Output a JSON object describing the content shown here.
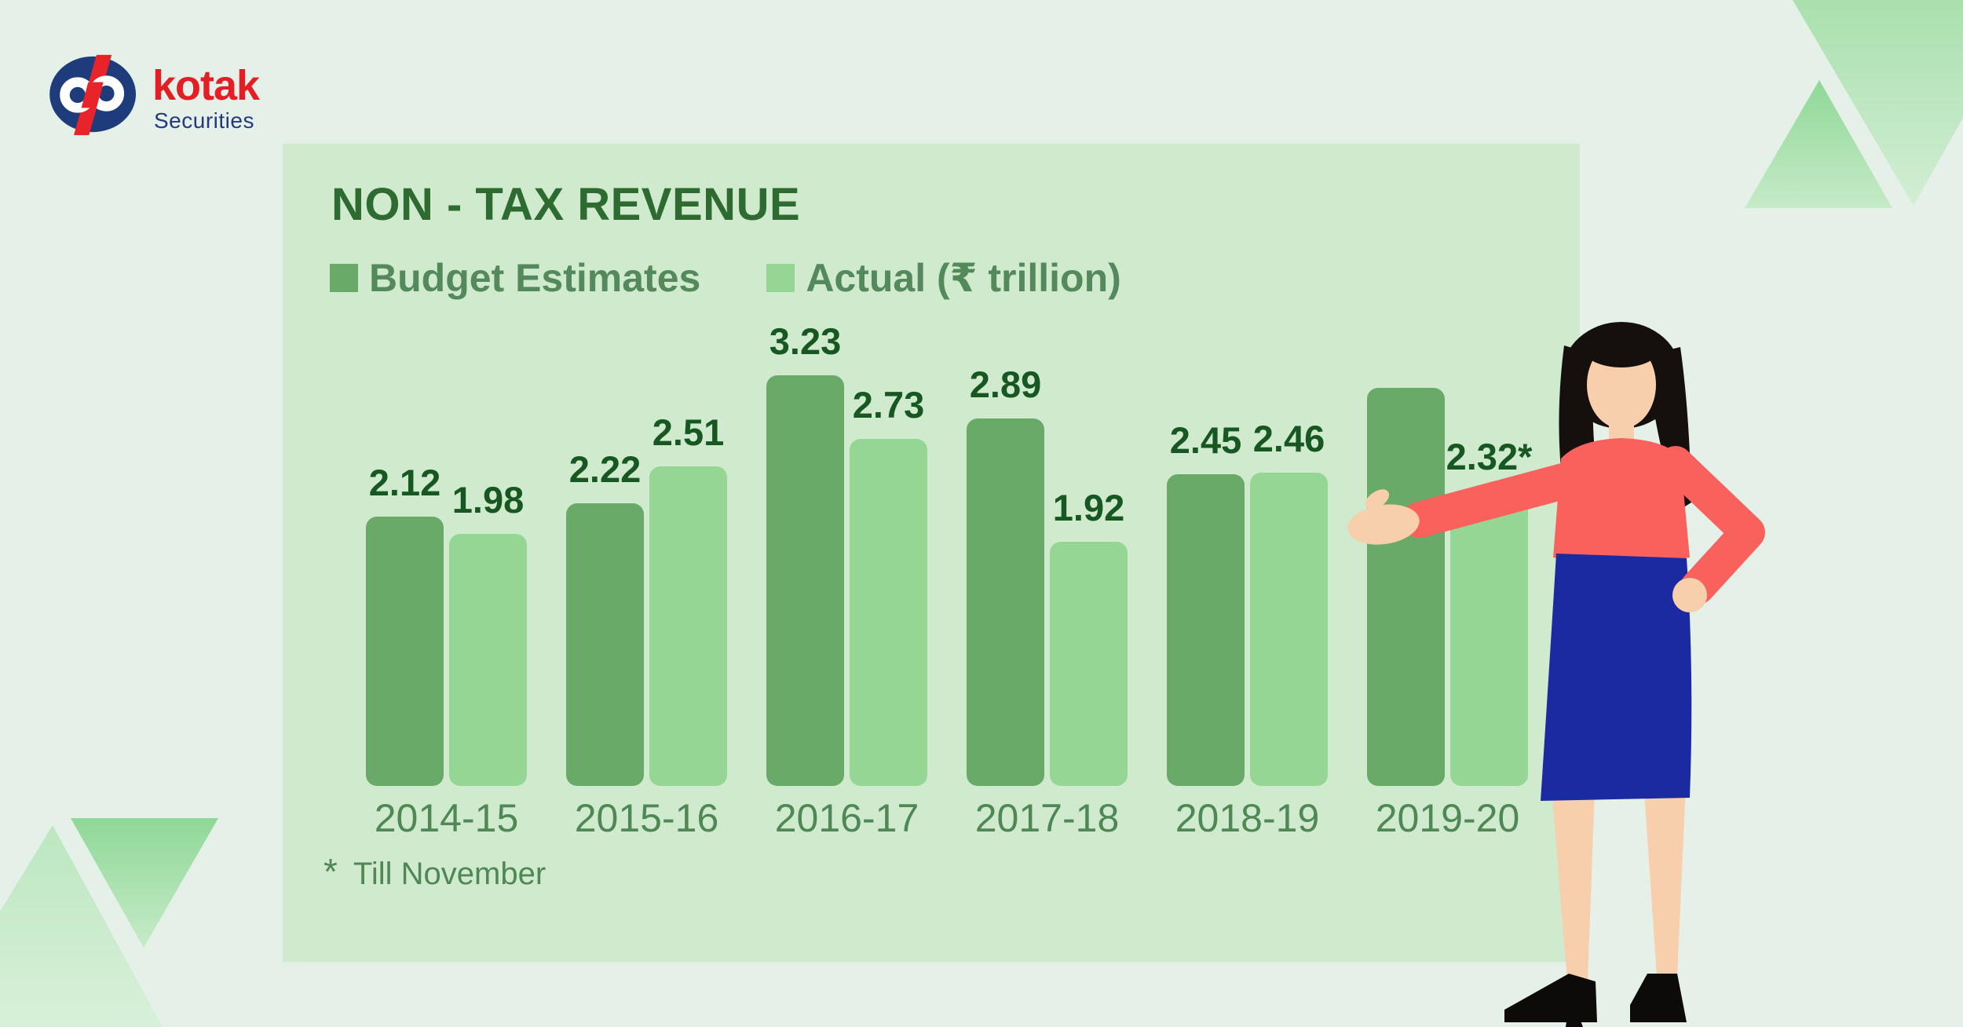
{
  "logo": {
    "brand": "kotak",
    "subbrand": "Securities"
  },
  "panel": {
    "title": "NON - TAX REVENUE",
    "legend": [
      {
        "label": "Budget Estimates",
        "color": "#69aa69"
      },
      {
        "label": "Actual (₹ trillion)",
        "color": "#95d694"
      }
    ],
    "footnote_mark": "*",
    "footnote_text": "Till November"
  },
  "chart_data": {
    "type": "bar",
    "title": "NON - TAX REVENUE",
    "unit": "₹ trillion",
    "categories": [
      "2014-15",
      "2015-16",
      "2016-17",
      "2017-18",
      "2018-19",
      "2019-20"
    ],
    "series": [
      {
        "name": "Budget Estimates",
        "color": "#69aa69",
        "values": [
          2.12,
          2.22,
          3.23,
          2.89,
          2.45,
          3.13
        ],
        "labels": [
          "2.12",
          "2.22",
          "3.23",
          "2.89",
          "2.45",
          ""
        ]
      },
      {
        "name": "Actual",
        "color": "#95d694",
        "values": [
          1.98,
          2.51,
          2.73,
          1.92,
          2.46,
          2.32
        ],
        "labels": [
          "1.98",
          "2.51",
          "2.73",
          "1.92",
          "2.46",
          "2.32*"
        ]
      }
    ],
    "ylim": [
      0,
      3.5
    ],
    "grid": false,
    "legend_position": "top-left",
    "annotations": [
      "* Till November"
    ]
  },
  "colors": {
    "page_bg": "#e5f1e8",
    "panel_bg": "#cfeacd",
    "bar_budget": "#69aa69",
    "bar_actual": "#95d694",
    "title_text": "#2e6b31",
    "value_text": "#175722",
    "axis_text": "#4f8755",
    "logo_red": "#e31e25",
    "logo_navy": "#1e3c7c",
    "decor_triangle_strong": "#93da9b",
    "decor_triangle_light": "#b9e6bd",
    "woman_top": "#f9615c",
    "woman_skirt": "#1b2aa1",
    "woman_skin": "#f7cfad",
    "woman_hair": "#15100e"
  }
}
